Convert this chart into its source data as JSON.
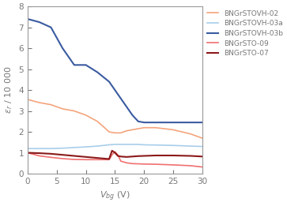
{
  "xlabel_text": "$V_{bg}$ (V)",
  "ylabel_text": "$\\varepsilon_r$ / 10 000",
  "xlim": [
    0,
    30
  ],
  "ylim": [
    0,
    8
  ],
  "xticks": [
    0,
    5,
    10,
    15,
    20,
    25,
    30
  ],
  "yticks": [
    0,
    1,
    2,
    3,
    4,
    5,
    6,
    7,
    8
  ],
  "series": [
    {
      "label": "BNGrSTOVH-02",
      "color": "#F4A47C",
      "lw": 1.2,
      "x": [
        0,
        2,
        4,
        6,
        8,
        10,
        12,
        14,
        15,
        16,
        17,
        18,
        19,
        20,
        22,
        25,
        28,
        30
      ],
      "y": [
        3.55,
        3.4,
        3.3,
        3.1,
        3.0,
        2.8,
        2.5,
        2.0,
        1.95,
        1.95,
        2.05,
        2.1,
        2.15,
        2.2,
        2.2,
        2.1,
        1.9,
        1.7
      ]
    },
    {
      "label": "BNGrSTOVH-03a",
      "color": "#A8CEEA",
      "lw": 1.2,
      "x": [
        0,
        2,
        4,
        6,
        8,
        10,
        12,
        14,
        15,
        16,
        17,
        18,
        19,
        20,
        22,
        25,
        28,
        30
      ],
      "y": [
        1.2,
        1.2,
        1.2,
        1.22,
        1.25,
        1.28,
        1.32,
        1.38,
        1.4,
        1.4,
        1.4,
        1.4,
        1.4,
        1.38,
        1.37,
        1.35,
        1.32,
        1.3
      ]
    },
    {
      "label": "BNGrSTOVH-03b",
      "color": "#3A5BA0",
      "lw": 1.5,
      "x": [
        0,
        2,
        4,
        6,
        8,
        10,
        12,
        14,
        15,
        16,
        17,
        18,
        19,
        20,
        22,
        25,
        28,
        30
      ],
      "y": [
        7.4,
        7.25,
        7.0,
        6.0,
        5.2,
        5.2,
        4.85,
        4.4,
        4.0,
        3.6,
        3.2,
        2.8,
        2.5,
        2.45,
        2.45,
        2.45,
        2.45,
        2.45
      ]
    },
    {
      "label": "BNGrSTO-09",
      "color": "#F07070",
      "lw": 1.2,
      "x": [
        0,
        2,
        4,
        6,
        8,
        10,
        12,
        14,
        14.5,
        15,
        15.5,
        16,
        17,
        18,
        19,
        20,
        22,
        25,
        28,
        30
      ],
      "y": [
        1.0,
        0.85,
        0.78,
        0.72,
        0.68,
        0.67,
        0.67,
        0.67,
        0.9,
        1.05,
        0.9,
        0.6,
        0.52,
        0.48,
        0.47,
        0.46,
        0.45,
        0.42,
        0.38,
        0.32
      ]
    },
    {
      "label": "BNGrSTO-07",
      "color": "#8B1A1A",
      "lw": 1.5,
      "x": [
        0,
        2,
        4,
        6,
        8,
        10,
        12,
        14,
        14.5,
        15,
        15.5,
        16,
        17,
        18,
        19,
        20,
        22,
        25,
        28,
        30
      ],
      "y": [
        1.0,
        0.98,
        0.95,
        0.9,
        0.85,
        0.8,
        0.75,
        0.7,
        1.1,
        1.0,
        0.85,
        0.82,
        0.8,
        0.82,
        0.84,
        0.85,
        0.87,
        0.87,
        0.85,
        0.82
      ]
    }
  ],
  "spine_color": "#999999",
  "tick_color": "#777777",
  "label_color": "#777777",
  "legend_fontsize": 6.5,
  "axis_fontsize": 8,
  "tick_fontsize": 7.5,
  "figsize": [
    3.63,
    2.61
  ],
  "dpi": 100
}
